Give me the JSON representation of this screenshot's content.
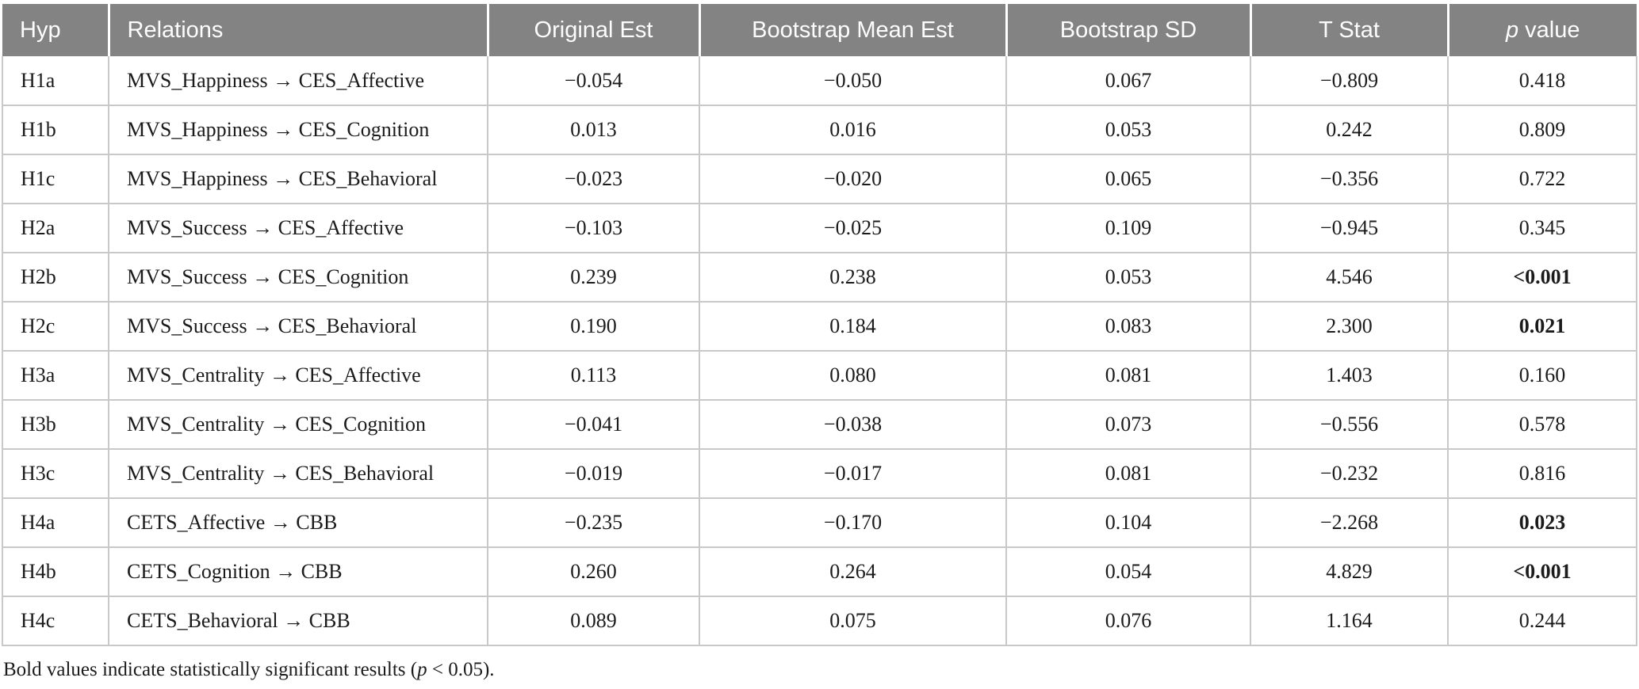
{
  "table": {
    "columns": [
      {
        "key": "hyp",
        "label": "Hyp"
      },
      {
        "key": "relations",
        "label": "Relations"
      },
      {
        "key": "original_est",
        "label": "Original Est"
      },
      {
        "key": "bootstrap_mean_est",
        "label": "Bootstrap Mean Est"
      },
      {
        "key": "bootstrap_sd",
        "label": "Bootstrap SD"
      },
      {
        "key": "t_stat",
        "label": "T Stat"
      },
      {
        "key": "p_value",
        "label_italic": "p",
        "label_rest": " value"
      }
    ],
    "rows": [
      {
        "hyp": "H1a",
        "relations": "MVS_Happiness → CES_Affective",
        "original_est": "−0.054",
        "bootstrap_mean_est": "−0.050",
        "bootstrap_sd": "0.067",
        "t_stat": "−0.809",
        "p_value": "0.418",
        "significant": false
      },
      {
        "hyp": "H1b",
        "relations": "MVS_Happiness → CES_Cognition",
        "original_est": "0.013",
        "bootstrap_mean_est": "0.016",
        "bootstrap_sd": "0.053",
        "t_stat": "0.242",
        "p_value": "0.809",
        "significant": false
      },
      {
        "hyp": "H1c",
        "relations": "MVS_Happiness → CES_Behavioral",
        "original_est": "−0.023",
        "bootstrap_mean_est": "−0.020",
        "bootstrap_sd": "0.065",
        "t_stat": "−0.356",
        "p_value": "0.722",
        "significant": false
      },
      {
        "hyp": "H2a",
        "relations": "MVS_Success → CES_Affective",
        "original_est": "−0.103",
        "bootstrap_mean_est": "−0.025",
        "bootstrap_sd": "0.109",
        "t_stat": "−0.945",
        "p_value": "0.345",
        "significant": false
      },
      {
        "hyp": "H2b",
        "relations": "MVS_Success → CES_Cognition",
        "original_est": "0.239",
        "bootstrap_mean_est": "0.238",
        "bootstrap_sd": "0.053",
        "t_stat": "4.546",
        "p_value": "<0.001",
        "significant": true
      },
      {
        "hyp": "H2c",
        "relations": "MVS_Success → CES_Behavioral",
        "original_est": "0.190",
        "bootstrap_mean_est": "0.184",
        "bootstrap_sd": "0.083",
        "t_stat": "2.300",
        "p_value": "0.021",
        "significant": true
      },
      {
        "hyp": "H3a",
        "relations": "MVS_Centrality → CES_Affective",
        "original_est": "0.113",
        "bootstrap_mean_est": "0.080",
        "bootstrap_sd": "0.081",
        "t_stat": "1.403",
        "p_value": "0.160",
        "significant": false
      },
      {
        "hyp": "H3b",
        "relations": "MVS_Centrality → CES_Cognition",
        "original_est": "−0.041",
        "bootstrap_mean_est": "−0.038",
        "bootstrap_sd": "0.073",
        "t_stat": "−0.556",
        "p_value": "0.578",
        "significant": false
      },
      {
        "hyp": "H3c",
        "relations": "MVS_Centrality → CES_Behavioral",
        "original_est": "−0.019",
        "bootstrap_mean_est": "−0.017",
        "bootstrap_sd": "0.081",
        "t_stat": "−0.232",
        "p_value": "0.816",
        "significant": false
      },
      {
        "hyp": "H4a",
        "relations": "CETS_Affective → CBB",
        "original_est": "−0.235",
        "bootstrap_mean_est": "−0.170",
        "bootstrap_sd": "0.104",
        "t_stat": "−2.268",
        "p_value": "0.023",
        "significant": true
      },
      {
        "hyp": "H4b",
        "relations": "CETS_Cognition → CBB",
        "original_est": "0.260",
        "bootstrap_mean_est": "0.264",
        "bootstrap_sd": "0.054",
        "t_stat": "4.829",
        "p_value": "<0.001",
        "significant": true
      },
      {
        "hyp": "H4c",
        "relations": "CETS_Behavioral → CBB",
        "original_est": "0.089",
        "bootstrap_mean_est": "0.075",
        "bootstrap_sd": "0.076",
        "t_stat": "1.164",
        "p_value": "0.244",
        "significant": false
      }
    ]
  },
  "footnote": {
    "prefix": "Bold values indicate statistically significant results (",
    "italic": "p",
    "suffix": " < 0.05)."
  },
  "colors": {
    "header_background": "#838383",
    "header_text": "#fdfdfd",
    "body_text": "#1b1b1b",
    "border": "#c9c9c9"
  }
}
